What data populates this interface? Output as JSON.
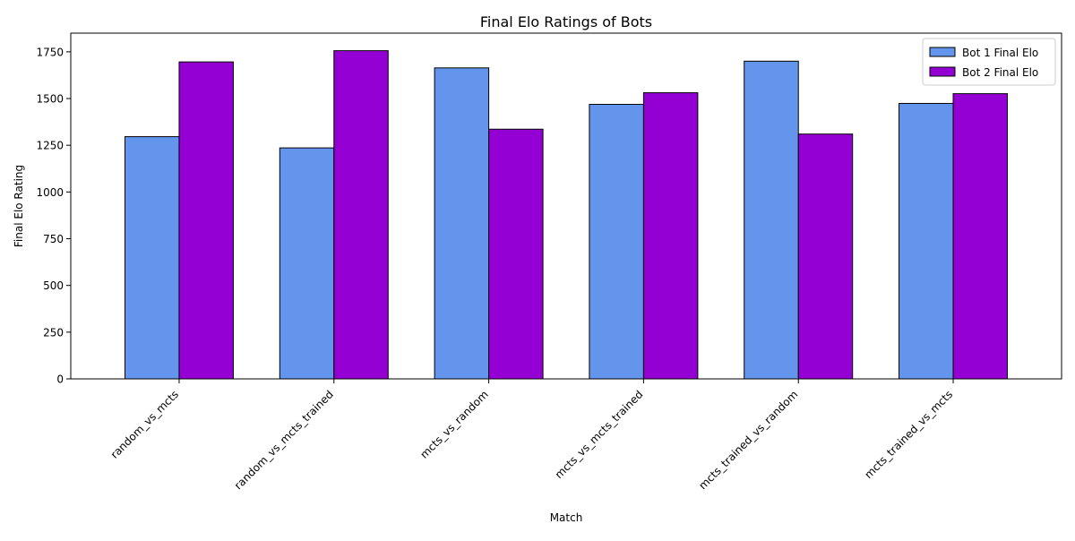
{
  "chart_data": {
    "type": "bar",
    "title": "Final Elo Ratings of Bots",
    "xlabel": "Match",
    "ylabel": "Final Elo Rating",
    "categories": [
      "random_vs_mcts",
      "random_vs_mcts_trained",
      "mcts_vs_random",
      "mcts_vs_mcts_trained",
      "mcts_trained_vs_random",
      "mcts_trained_vs_mcts"
    ],
    "series": [
      {
        "name": "Bot 1 Final Elo",
        "color": "#6495ED",
        "values": [
          1296,
          1236,
          1664,
          1469,
          1700,
          1474
        ]
      },
      {
        "name": "Bot 2 Final Elo",
        "color": "#9400D3",
        "values": [
          1696,
          1756,
          1336,
          1531,
          1310,
          1526
        ]
      }
    ],
    "ylim": [
      0,
      1850
    ],
    "yticks": [
      0,
      250,
      500,
      750,
      1000,
      1250,
      1500,
      1750
    ],
    "xtick_rotation_deg": 45,
    "legend_position": "top-right",
    "grid": false
  }
}
